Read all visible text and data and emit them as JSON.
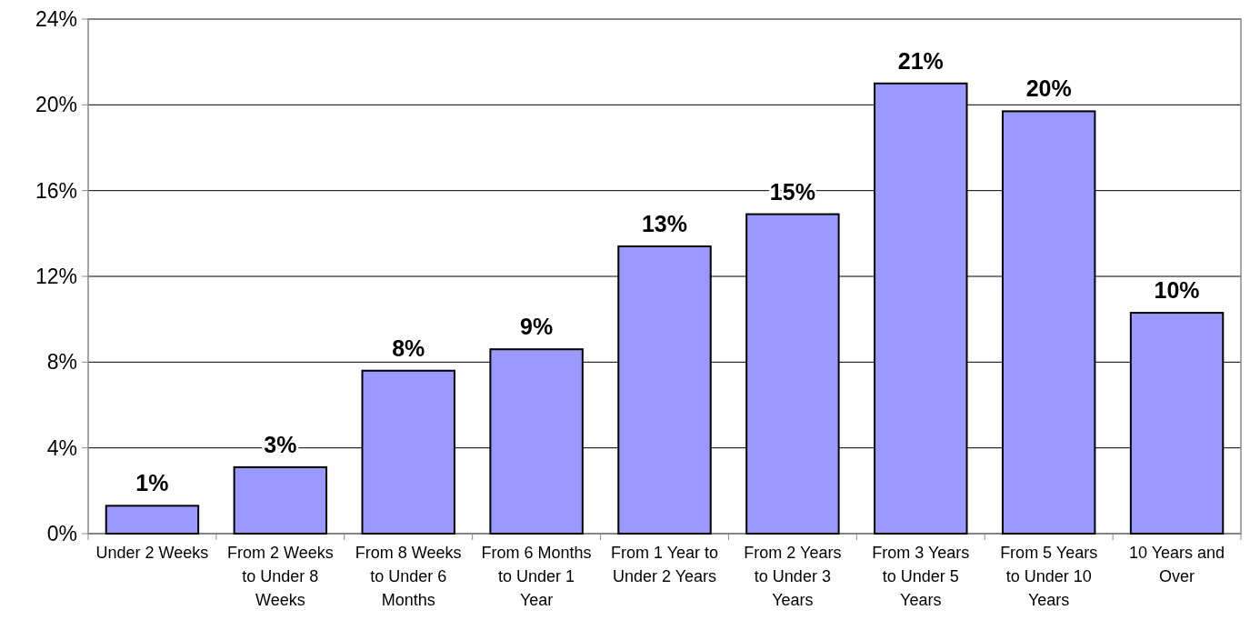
{
  "chart_data": {
    "type": "bar",
    "categories": [
      "Under 2 Weeks",
      "From 2 Weeks to Under 8 Weeks",
      "From 8 Weeks to Under 6 Months",
      "From 6 Months to Under 1 Year",
      "From 1 Year to Under 2 Years",
      "From 2 Years to Under 3 Years",
      "From 3 Years to Under 5 Years",
      "From 5 Years to Under 10 Years",
      "10 Years and Over"
    ],
    "values": [
      1.3,
      3.1,
      7.6,
      8.6,
      13.4,
      14.9,
      21.0,
      19.7,
      10.3
    ],
    "value_labels": [
      "1%",
      "3%",
      "8%",
      "9%",
      "13%",
      "15%",
      "21%",
      "20%",
      "10%"
    ],
    "color": "#9999ff",
    "ylim": [
      0,
      24
    ],
    "yticks": [
      {
        "value": 0,
        "label": "0%"
      },
      {
        "value": 4,
        "label": "4%"
      },
      {
        "value": 8,
        "label": "8%"
      },
      {
        "value": 12,
        "label": "12%"
      },
      {
        "value": 16,
        "label": "16%"
      },
      {
        "value": 20,
        "label": "20%"
      },
      {
        "value": 24,
        "label": "24%"
      }
    ],
    "grid": "y"
  }
}
